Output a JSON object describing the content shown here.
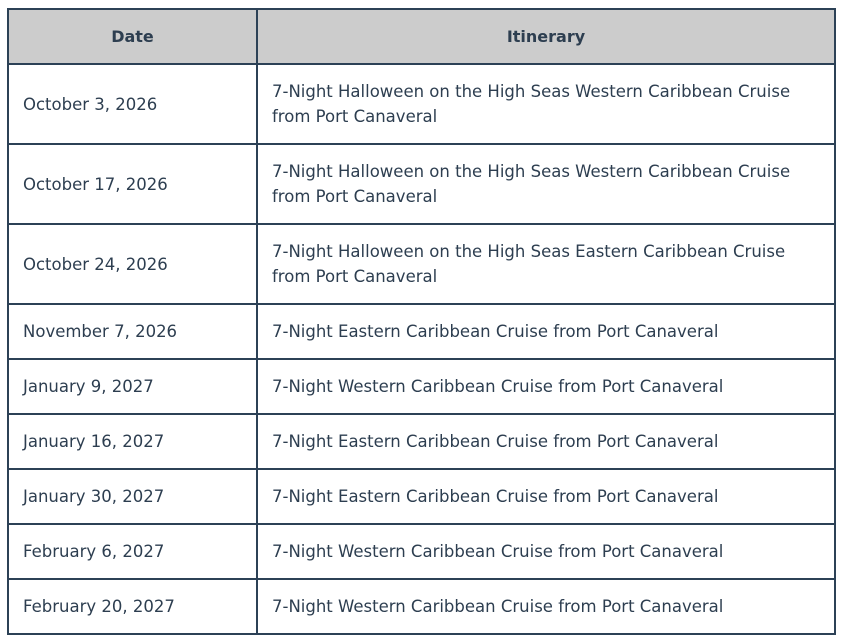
{
  "table": {
    "headers": [
      "Date",
      "Itinerary"
    ],
    "rows": [
      {
        "date": "October 3, 2026",
        "itinerary": "7-Night Halloween on the High Seas Western Caribbean Cruise from Port Canaveral"
      },
      {
        "date": "October 17, 2026",
        "itinerary": "7-Night Halloween on the High Seas Western Caribbean Cruise from Port Canaveral"
      },
      {
        "date": "October 24, 2026",
        "itinerary": "7-Night Halloween on the High Seas Eastern Caribbean Cruise from Port Canaveral"
      },
      {
        "date": "November 7, 2026",
        "itinerary": "7-Night Eastern Caribbean Cruise from Port Canaveral"
      },
      {
        "date": "January 9, 2027",
        "itinerary": "7-Night Western Caribbean Cruise from Port Canaveral"
      },
      {
        "date": "January 16, 2027",
        "itinerary": "7-Night Eastern Caribbean Cruise from Port Canaveral"
      },
      {
        "date": "January 30, 2027",
        "itinerary": "7-Night Eastern Caribbean Cruise from Port Canaveral"
      },
      {
        "date": "February 6, 2027",
        "itinerary": "7-Night Western Caribbean Cruise from Port Canaveral"
      },
      {
        "date": "February 20, 2027",
        "itinerary": "7-Night Western Caribbean Cruise from Port Canaveral"
      }
    ]
  }
}
